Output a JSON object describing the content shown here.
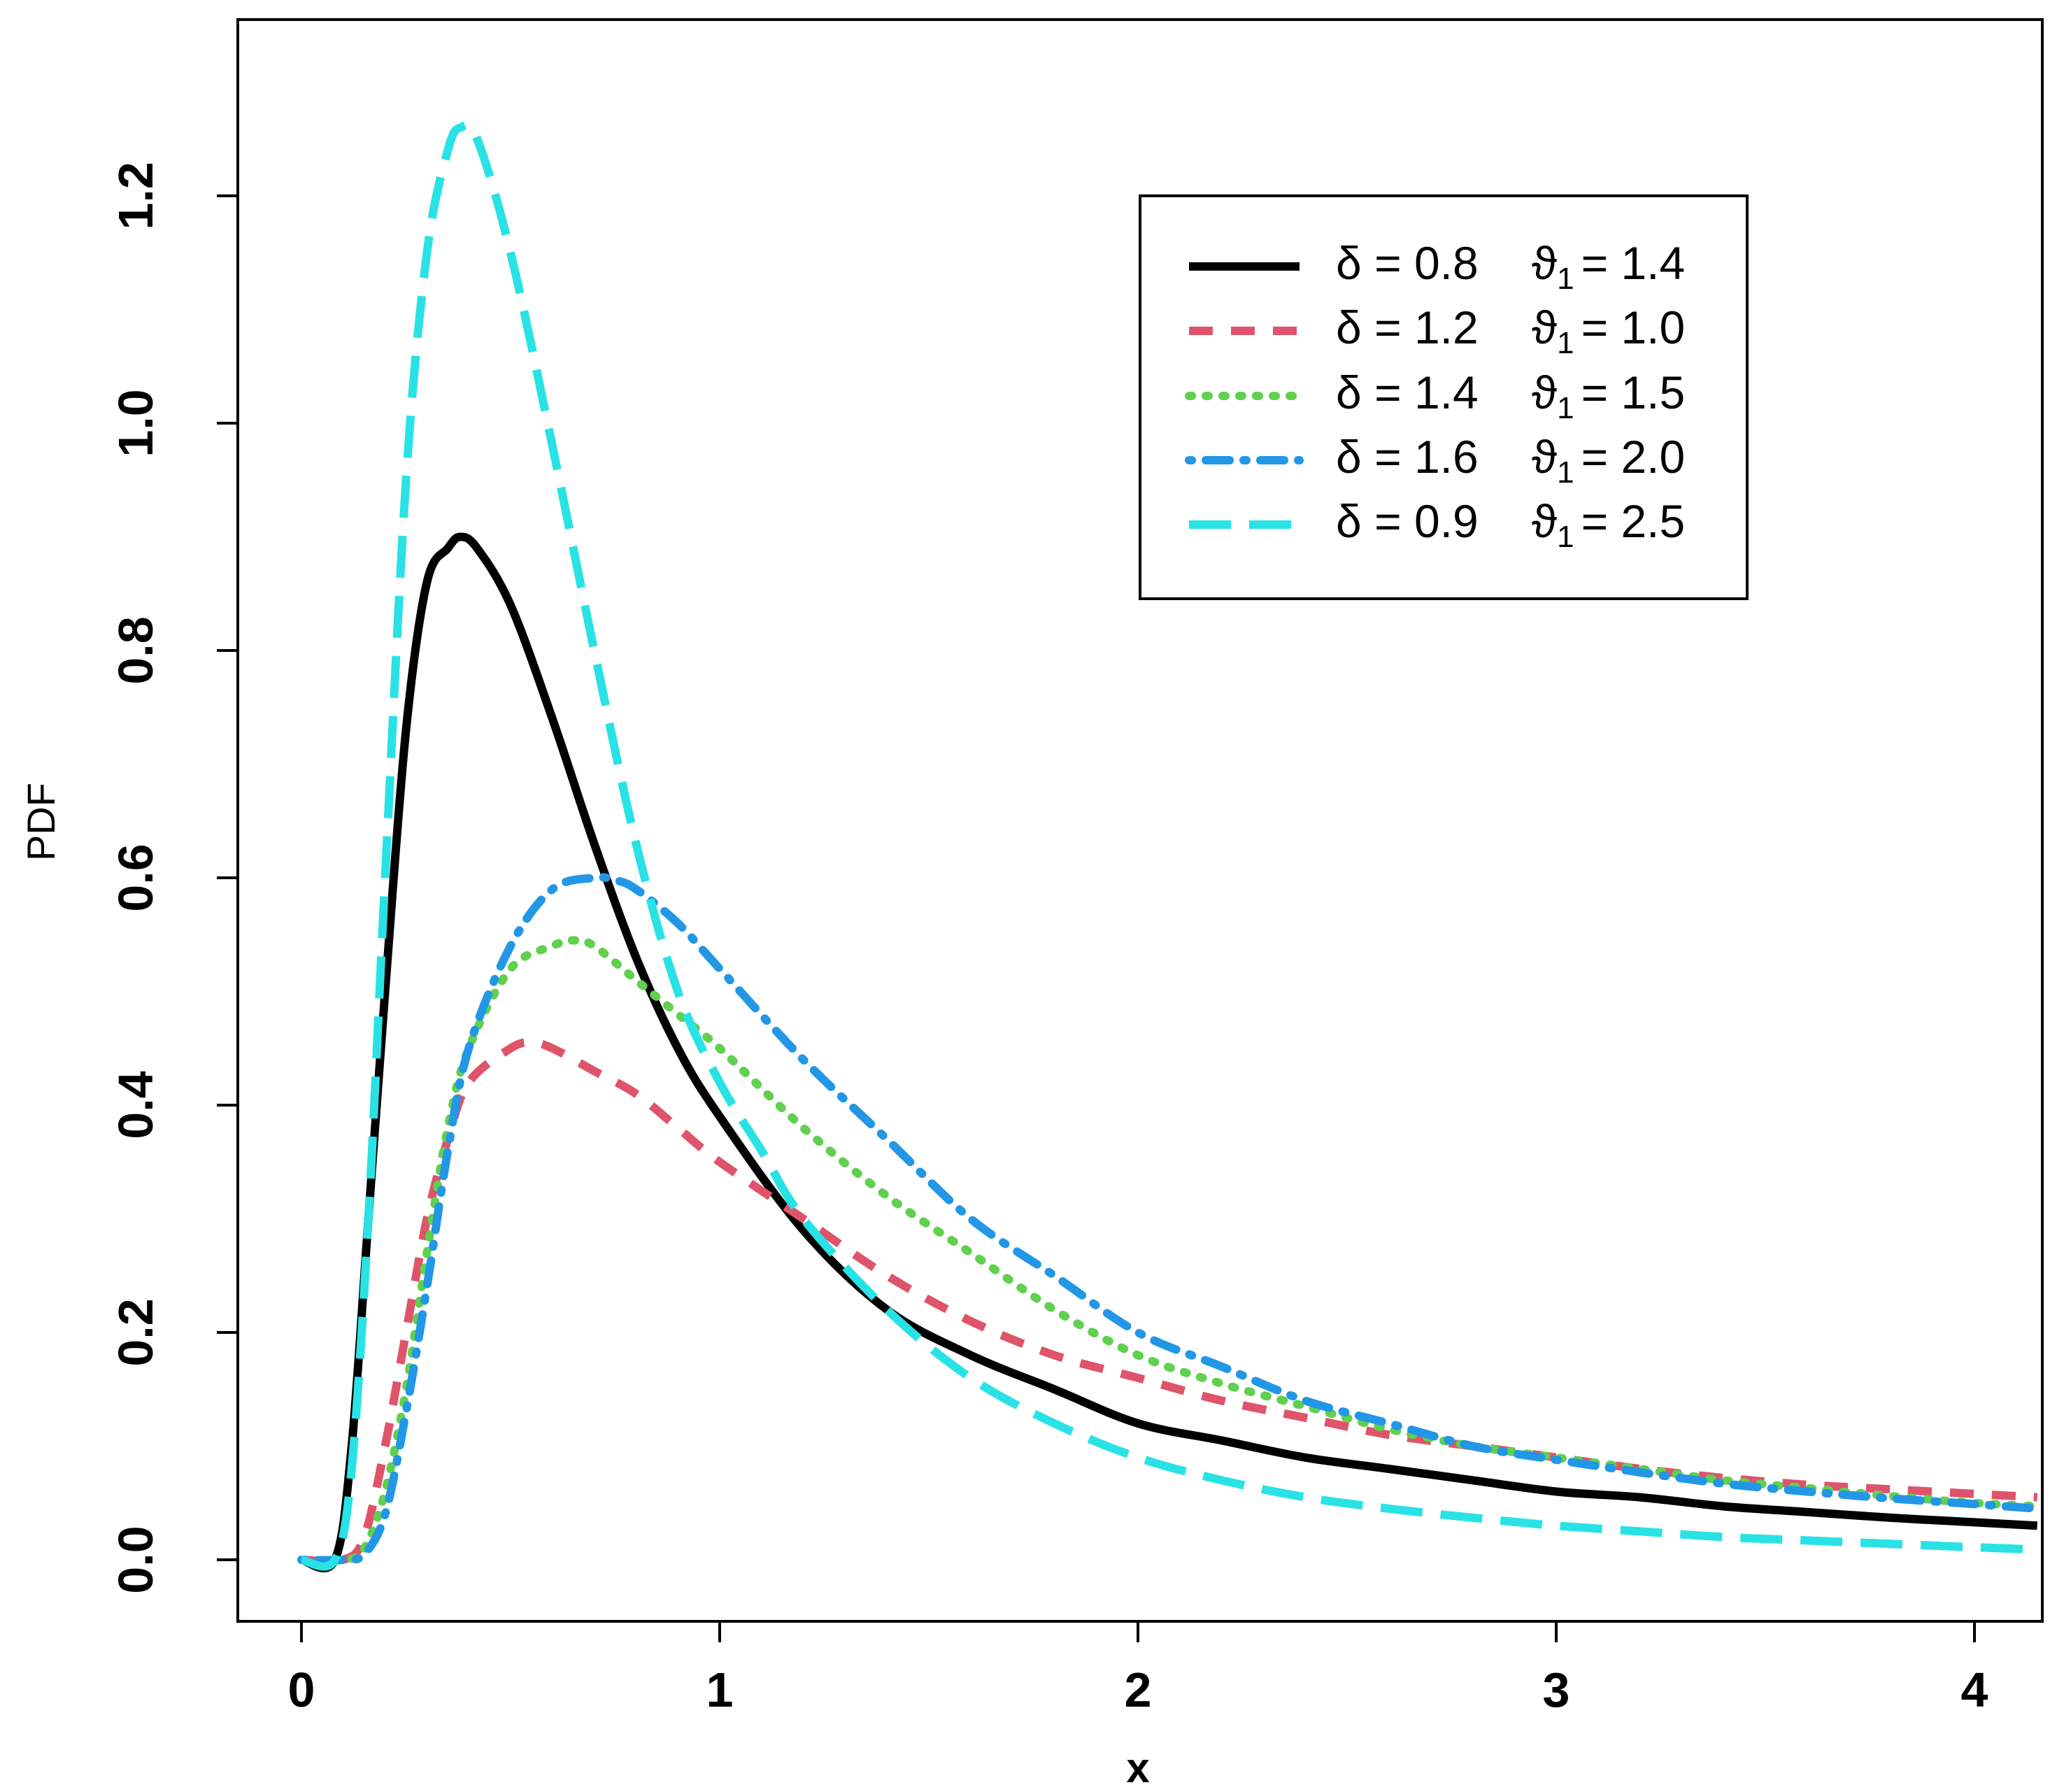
{
  "chart_data": {
    "type": "line",
    "xlabel": "x",
    "ylabel": "PDF",
    "xlim": [
      -0.15,
      4.15
    ],
    "ylim": [
      -0.1,
      1.35
    ],
    "x_ticks": [
      "0",
      "1",
      "2",
      "3",
      "4"
    ],
    "y_ticks": [
      "0.0",
      "0.2",
      "0.4",
      "0.6",
      "0.8",
      "1.0",
      "1.2"
    ],
    "grid": false,
    "legend_position": "top-right",
    "legend": [
      {
        "delta": "δ = 0.8",
        "theta": "ϑ",
        "sub": "1",
        "theta_value": "= 1.4"
      },
      {
        "delta": "δ = 1.2",
        "theta": "ϑ",
        "sub": "1",
        "theta_value": "= 1.0"
      },
      {
        "delta": "δ = 1.4",
        "theta": "ϑ",
        "sub": "1",
        "theta_value": "= 1.5"
      },
      {
        "delta": "δ = 1.6",
        "theta": "ϑ",
        "sub": "1",
        "theta_value": "= 2.0"
      },
      {
        "delta": "δ = 0.9",
        "theta": "ϑ",
        "sub": "1",
        "theta_value": "= 2.5"
      }
    ],
    "series": [
      {
        "color": "#000000",
        "dash": "solid",
        "points": [
          [
            0,
            0
          ],
          [
            0.08,
            0.0
          ],
          [
            0.12,
            0.1
          ],
          [
            0.16,
            0.3
          ],
          [
            0.2,
            0.5
          ],
          [
            0.25,
            0.73
          ],
          [
            0.3,
            0.86
          ],
          [
            0.35,
            0.89
          ],
          [
            0.38,
            0.9
          ],
          [
            0.42,
            0.89
          ],
          [
            0.5,
            0.84
          ],
          [
            0.6,
            0.74
          ],
          [
            0.7,
            0.63
          ],
          [
            0.8,
            0.53
          ],
          [
            0.9,
            0.45
          ],
          [
            1.0,
            0.39
          ],
          [
            1.2,
            0.29
          ],
          [
            1.4,
            0.22
          ],
          [
            1.6,
            0.18
          ],
          [
            1.8,
            0.15
          ],
          [
            2.0,
            0.12
          ],
          [
            2.2,
            0.105
          ],
          [
            2.4,
            0.09
          ],
          [
            2.6,
            0.08
          ],
          [
            2.8,
            0.07
          ],
          [
            3.0,
            0.06
          ],
          [
            3.2,
            0.055
          ],
          [
            3.4,
            0.047
          ],
          [
            3.6,
            0.042
          ],
          [
            3.8,
            0.037
          ],
          [
            4.0,
            0.033
          ],
          [
            4.15,
            0.03
          ]
        ]
      },
      {
        "color": "#DF536B",
        "dash": "dashed",
        "points": [
          [
            0,
            0
          ],
          [
            0.1,
            0.0
          ],
          [
            0.15,
            0.02
          ],
          [
            0.2,
            0.1
          ],
          [
            0.25,
            0.2
          ],
          [
            0.3,
            0.3
          ],
          [
            0.35,
            0.37
          ],
          [
            0.4,
            0.42
          ],
          [
            0.5,
            0.45
          ],
          [
            0.55,
            0.455
          ],
          [
            0.6,
            0.45
          ],
          [
            0.7,
            0.43
          ],
          [
            0.8,
            0.41
          ],
          [
            0.9,
            0.38
          ],
          [
            1.0,
            0.35
          ],
          [
            1.2,
            0.3
          ],
          [
            1.4,
            0.25
          ],
          [
            1.6,
            0.21
          ],
          [
            1.8,
            0.18
          ],
          [
            2.0,
            0.16
          ],
          [
            2.2,
            0.14
          ],
          [
            2.4,
            0.125
          ],
          [
            2.6,
            0.11
          ],
          [
            2.8,
            0.1
          ],
          [
            3.0,
            0.09
          ],
          [
            3.2,
            0.08
          ],
          [
            3.4,
            0.072
          ],
          [
            3.6,
            0.066
          ],
          [
            3.8,
            0.062
          ],
          [
            4.0,
            0.058
          ],
          [
            4.15,
            0.055
          ]
        ]
      },
      {
        "color": "#61D04F",
        "dash": "dotted",
        "points": [
          [
            0,
            0
          ],
          [
            0.1,
            0.0
          ],
          [
            0.15,
            0.01
          ],
          [
            0.2,
            0.06
          ],
          [
            0.25,
            0.15
          ],
          [
            0.3,
            0.27
          ],
          [
            0.35,
            0.38
          ],
          [
            0.4,
            0.45
          ],
          [
            0.5,
            0.52
          ],
          [
            0.6,
            0.54
          ],
          [
            0.65,
            0.545
          ],
          [
            0.7,
            0.54
          ],
          [
            0.8,
            0.51
          ],
          [
            0.9,
            0.48
          ],
          [
            1.0,
            0.45
          ],
          [
            1.2,
            0.38
          ],
          [
            1.4,
            0.32
          ],
          [
            1.6,
            0.27
          ],
          [
            1.8,
            0.22
          ],
          [
            2.0,
            0.18
          ],
          [
            2.2,
            0.155
          ],
          [
            2.4,
            0.135
          ],
          [
            2.6,
            0.115
          ],
          [
            2.8,
            0.1
          ],
          [
            3.0,
            0.09
          ],
          [
            3.2,
            0.08
          ],
          [
            3.4,
            0.07
          ],
          [
            3.6,
            0.063
          ],
          [
            3.8,
            0.056
          ],
          [
            4.0,
            0.05
          ],
          [
            4.15,
            0.047
          ]
        ]
      },
      {
        "color": "#2297E6",
        "dash": "dashdot",
        "points": [
          [
            0,
            0
          ],
          [
            0.1,
            0.0
          ],
          [
            0.15,
            0.005
          ],
          [
            0.2,
            0.04
          ],
          [
            0.25,
            0.13
          ],
          [
            0.3,
            0.24
          ],
          [
            0.35,
            0.36
          ],
          [
            0.4,
            0.45
          ],
          [
            0.5,
            0.54
          ],
          [
            0.6,
            0.59
          ],
          [
            0.7,
            0.6
          ],
          [
            0.75,
            0.598
          ],
          [
            0.8,
            0.59
          ],
          [
            0.9,
            0.56
          ],
          [
            1.0,
            0.52
          ],
          [
            1.2,
            0.44
          ],
          [
            1.4,
            0.37
          ],
          [
            1.6,
            0.3
          ],
          [
            1.8,
            0.25
          ],
          [
            2.0,
            0.2
          ],
          [
            2.2,
            0.17
          ],
          [
            2.4,
            0.14
          ],
          [
            2.6,
            0.12
          ],
          [
            2.8,
            0.1
          ],
          [
            3.0,
            0.088
          ],
          [
            3.2,
            0.077
          ],
          [
            3.4,
            0.067
          ],
          [
            3.6,
            0.06
          ],
          [
            3.8,
            0.054
          ],
          [
            4.0,
            0.049
          ],
          [
            4.15,
            0.045
          ]
        ]
      },
      {
        "color": "#28E2E5",
        "dash": "longdash",
        "points": [
          [
            0,
            0
          ],
          [
            0.08,
            0.0
          ],
          [
            0.12,
            0.08
          ],
          [
            0.16,
            0.3
          ],
          [
            0.2,
            0.6
          ],
          [
            0.25,
            0.95
          ],
          [
            0.3,
            1.15
          ],
          [
            0.35,
            1.24
          ],
          [
            0.38,
            1.26
          ],
          [
            0.42,
            1.25
          ],
          [
            0.5,
            1.15
          ],
          [
            0.6,
            0.98
          ],
          [
            0.7,
            0.8
          ],
          [
            0.8,
            0.63
          ],
          [
            0.9,
            0.5
          ],
          [
            1.0,
            0.42
          ],
          [
            1.1,
            0.36
          ],
          [
            1.2,
            0.3
          ],
          [
            1.4,
            0.22
          ],
          [
            1.6,
            0.16
          ],
          [
            1.8,
            0.12
          ],
          [
            2.0,
            0.09
          ],
          [
            2.2,
            0.07
          ],
          [
            2.4,
            0.055
          ],
          [
            2.6,
            0.045
          ],
          [
            2.8,
            0.037
          ],
          [
            3.0,
            0.03
          ],
          [
            3.2,
            0.025
          ],
          [
            3.4,
            0.02
          ],
          [
            3.6,
            0.017
          ],
          [
            3.8,
            0.014
          ],
          [
            4.0,
            0.011
          ],
          [
            4.15,
            0.009
          ]
        ]
      }
    ]
  }
}
